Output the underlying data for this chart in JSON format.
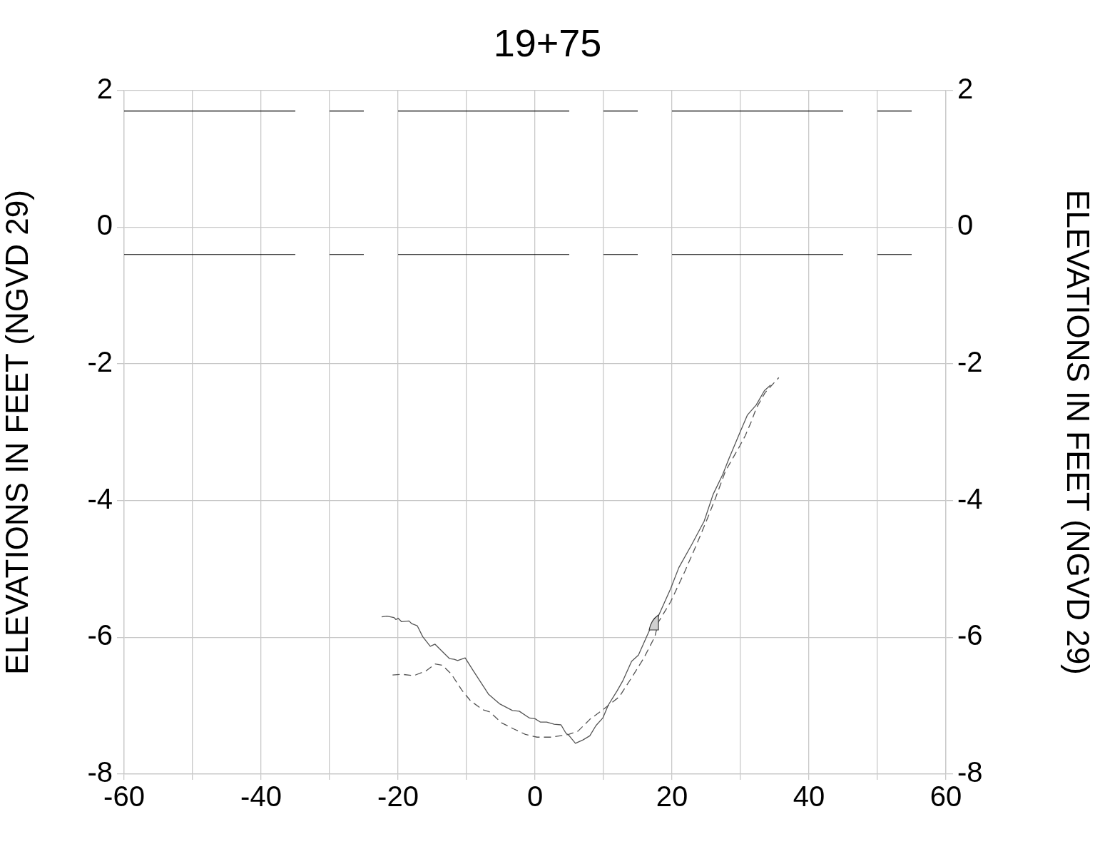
{
  "chart_data": {
    "type": "line",
    "title": "19+75",
    "ylabel": "ELEVATIONS IN FEET (NGVD 29)",
    "y2label": "ELEVATIONS IN FEET (NGVD 29)",
    "xlim": [
      -60,
      60
    ],
    "xticks": [
      -60,
      {
        "value": -50,
        "label": null
      },
      -40,
      {
        "value": -30,
        "label": null
      },
      -20,
      {
        "value": -10,
        "label": null
      },
      0,
      {
        "value": 10,
        "label": null
      },
      20,
      {
        "value": 30,
        "label": null
      },
      40,
      {
        "value": 50,
        "label": null
      },
      60
    ],
    "ylim": [
      -8,
      2
    ],
    "yticks": [
      -8,
      -6,
      -4,
      -2,
      0,
      2
    ],
    "y2lim": [
      -8,
      2
    ],
    "y2ticks": [
      -8,
      -6,
      -4,
      -2,
      0,
      2
    ],
    "grid": true,
    "legend": false,
    "marker": "none",
    "series": [
      {
        "color": "#555555",
        "line_style": "solid",
        "x": [
          -22.4,
          -21.6,
          -20.6,
          -20.3,
          -20.0,
          -19.5,
          -18.4,
          -18.0,
          -17.2,
          -16.4,
          -15.3,
          -14.6,
          -13.5,
          -12.5,
          -11.8,
          -11.3,
          -10.2,
          -9.0,
          -6.8,
          -5.2,
          -3.3,
          -2.3,
          -0.8,
          0,
          0.8,
          1.7,
          2.8,
          3.8,
          4.5,
          5.0,
          5.9,
          7.0,
          8.0,
          8.9,
          9.9,
          10.7,
          12.0,
          12.8,
          14.1,
          15.1,
          16.7,
          18.0,
          19.8,
          21.0,
          22.9,
          24.7,
          26.0,
          27.4,
          28.3,
          29.9,
          31.0,
          32.3,
          33.5,
          34.4
        ],
        "values": [
          -5.7,
          -5.69,
          -5.71,
          -5.74,
          -5.72,
          -5.77,
          -5.76,
          -5.8,
          -5.83,
          -5.99,
          -6.13,
          -6.1,
          -6.21,
          -6.31,
          -6.32,
          -6.34,
          -6.3,
          -6.49,
          -6.83,
          -6.97,
          -7.07,
          -7.08,
          -7.18,
          -7.19,
          -7.24,
          -7.24,
          -7.27,
          -7.28,
          -7.4,
          -7.44,
          -7.55,
          -7.5,
          -7.44,
          -7.29,
          -7.18,
          -6.99,
          -6.78,
          -6.64,
          -6.35,
          -6.26,
          -5.9,
          -5.69,
          -5.29,
          -4.98,
          -4.64,
          -4.3,
          -3.91,
          -3.62,
          -3.39,
          -3.01,
          -2.75,
          -2.6,
          -2.39,
          -2.31
        ]
      },
      {
        "color": "#555555",
        "line_style": "dashed",
        "x": [
          -20.8,
          -19.5,
          -17.7,
          -15.9,
          -14.6,
          -13.5,
          -12.2,
          -10.7,
          -9.4,
          -7.6,
          -6.6,
          -4.9,
          -3.1,
          -1.4,
          0.3,
          2.4,
          4.9,
          6.3,
          8.0,
          9.9,
          12.3,
          14.3,
          15.9,
          17.5,
          18.0,
          19.8,
          21.9,
          23.6,
          25.3,
          26.4,
          27.8,
          29.9,
          30.7,
          31.6,
          32.3,
          33.6,
          35.6
        ],
        "values": [
          -6.55,
          -6.54,
          -6.56,
          -6.49,
          -6.39,
          -6.41,
          -6.54,
          -6.77,
          -6.93,
          -7.06,
          -7.09,
          -7.25,
          -7.34,
          -7.42,
          -7.46,
          -7.46,
          -7.42,
          -7.37,
          -7.2,
          -7.06,
          -6.87,
          -6.56,
          -6.3,
          -5.99,
          -5.78,
          -5.48,
          -5.03,
          -4.64,
          -4.23,
          -3.95,
          -3.57,
          -3.2,
          -3.05,
          -2.84,
          -2.65,
          -2.42,
          -2.2
        ]
      }
    ],
    "ref_lines": [
      {
        "axis": "y",
        "value": 1.7,
        "color": "#000000",
        "line_style": "dashed"
      },
      {
        "axis": "y",
        "value": -0.4,
        "color": "#000000",
        "line_style": "dashed"
      }
    ]
  }
}
